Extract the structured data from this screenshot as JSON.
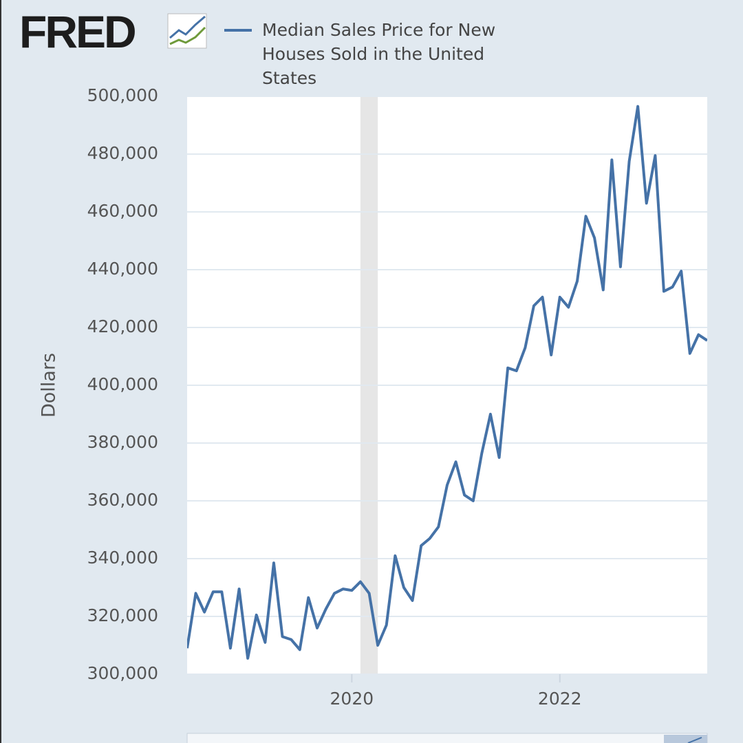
{
  "logo": "FRED",
  "chart_data": {
    "type": "line",
    "y_label": "Dollars",
    "x": [
      2018.417,
      2018.5,
      2018.583,
      2018.667,
      2018.75,
      2018.833,
      2018.917,
      2019,
      2019.083,
      2019.167,
      2019.25,
      2019.333,
      2019.417,
      2019.5,
      2019.583,
      2019.667,
      2019.75,
      2019.833,
      2019.917,
      2020,
      2020.083,
      2020.167,
      2020.25,
      2020.333,
      2020.417,
      2020.5,
      2020.583,
      2020.667,
      2020.75,
      2020.833,
      2020.917,
      2021,
      2021.083,
      2021.167,
      2021.25,
      2021.333,
      2021.417,
      2021.5,
      2021.583,
      2021.667,
      2021.75,
      2021.833,
      2021.917,
      2022,
      2022.083,
      2022.167,
      2022.25,
      2022.333,
      2022.417,
      2022.5,
      2022.583,
      2022.667,
      2022.75,
      2022.833,
      2022.917,
      2023,
      2023.083,
      2023.167,
      2023.25,
      2023.333,
      2023.417
    ],
    "series": [
      {
        "name": "Median Sales Price for New Houses Sold in the United States",
        "color": "#4572a7",
        "values": [
          309000,
          328000,
          321500,
          328500,
          328500,
          309000,
          329500,
          305500,
          320500,
          311000,
          338500,
          313000,
          312000,
          308500,
          326500,
          316000,
          322500,
          328000,
          329500,
          329000,
          332000,
          328000,
          310000,
          317000,
          341000,
          330000,
          325500,
          344500,
          347000,
          351000,
          365500,
          373500,
          362000,
          360000,
          376500,
          390000,
          375000,
          406000,
          405000,
          413000,
          427500,
          430500,
          410500,
          430500,
          427000,
          436000,
          458500,
          451000,
          433000,
          478000,
          441000,
          477500,
          496500,
          463000,
          479500,
          432500,
          434000,
          439500,
          411000,
          417500,
          415500
        ]
      }
    ],
    "recession": [
      2020.083,
      2020.25
    ],
    "recession_color": "#e6e6e6",
    "xlim": [
      2018.417,
      2023.417
    ],
    "xticks": [
      2020,
      2022
    ],
    "ylim": [
      300000,
      500000
    ],
    "yticks": [
      {
        "value": 300000,
        "label": "300,000"
      },
      {
        "value": 320000,
        "label": "320,000"
      },
      {
        "value": 340000,
        "label": "340,000"
      },
      {
        "value": 360000,
        "label": "360,000"
      },
      {
        "value": 380000,
        "label": "380,000"
      },
      {
        "value": 400000,
        "label": "400,000"
      },
      {
        "value": 420000,
        "label": "420,000"
      },
      {
        "value": 440000,
        "label": "440,000"
      },
      {
        "value": 460000,
        "label": "460,000"
      },
      {
        "value": 480000,
        "label": "480,000"
      },
      {
        "value": 500000,
        "label": "500,000"
      }
    ],
    "grid": true
  }
}
